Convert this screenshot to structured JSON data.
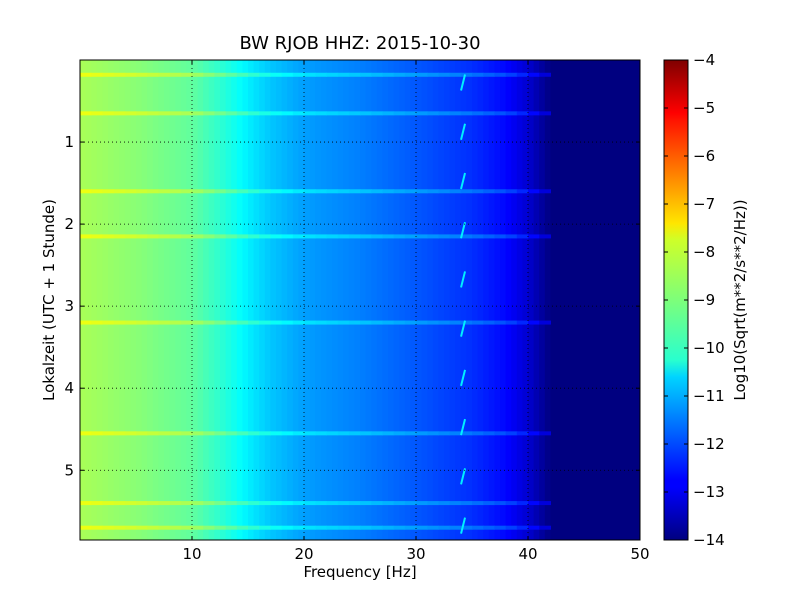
{
  "chart_data": {
    "type": "heatmap",
    "title": "BW RJOB HHZ: 2015-10-30",
    "xlabel": "Frequency [Hz]",
    "ylabel": "Lokalzeit (UTC + 1 Stunde)",
    "xlim": [
      0,
      50
    ],
    "ylim": [
      5.85,
      0
    ],
    "x_ticks": [
      10,
      20,
      30,
      40,
      50
    ],
    "x_tick_labels": [
      "10",
      "20",
      "30",
      "40",
      "50"
    ],
    "y_ticks": [
      1,
      2,
      3,
      4,
      5
    ],
    "y_tick_labels": [
      "1",
      "2",
      "3",
      "4",
      "5"
    ],
    "grid": true,
    "colorbar": {
      "label": "Log10(Sqrt(m**2/s**2/Hz))",
      "range": [
        -14,
        -4
      ],
      "ticks": [
        -4,
        -5,
        -6,
        -7,
        -8,
        -9,
        -10,
        -11,
        -12,
        -13,
        -14
      ],
      "tick_labels": [
        "−4",
        "−5",
        "−6",
        "−7",
        "−8",
        "−9",
        "−10",
        "−11",
        "−12",
        "−13",
        "−14"
      ],
      "colormap": "jet"
    },
    "frequency_profile": {
      "frequencies_hz": [
        0,
        5,
        10,
        13,
        15,
        17,
        20,
        25,
        30,
        35,
        38,
        40,
        42,
        50
      ],
      "log10_amplitude": [
        -8.6,
        -8.9,
        -9.3,
        -9.9,
        -10.4,
        -10.8,
        -11.2,
        -11.5,
        -11.9,
        -12.3,
        -12.7,
        -13.2,
        -14,
        -14
      ]
    },
    "bright_bands_hours": [
      0.18,
      0.65,
      1.6,
      2.15,
      3.2,
      4.55,
      5.4,
      5.7
    ],
    "tone_line_hz": 34.2
  }
}
